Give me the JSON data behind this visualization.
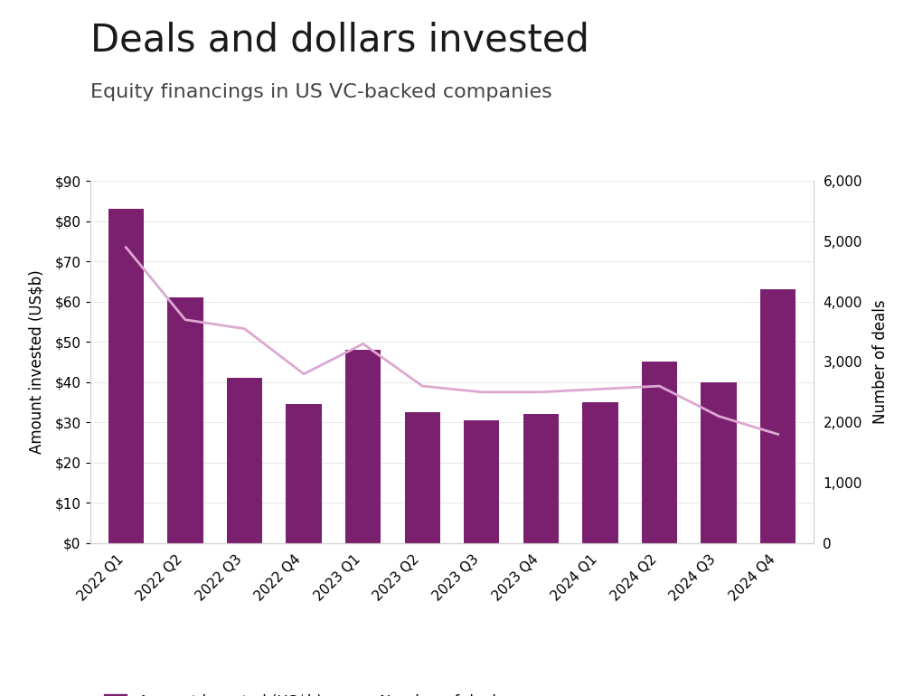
{
  "title": "Deals and dollars invested",
  "subtitle": "Equity financings in US VC-backed companies",
  "categories": [
    "2022 Q1",
    "2022 Q2",
    "2022 Q3",
    "2022 Q4",
    "2023 Q1",
    "2023 Q2",
    "2023 Q3",
    "2023 Q4",
    "2024 Q1",
    "2024 Q2",
    "2024 Q3",
    "2024 Q4"
  ],
  "amount_invested": [
    83,
    61,
    41,
    34.5,
    48,
    32.5,
    30.5,
    32,
    35,
    45,
    40,
    63
  ],
  "num_deals": [
    4900,
    3700,
    3550,
    2800,
    3300,
    2600,
    2500,
    2500,
    2550,
    2600,
    2100,
    1800
  ],
  "bar_color": "#7b1f6f",
  "line_color": "#dda8d0",
  "left_ylim": [
    0,
    90
  ],
  "right_ylim": [
    0,
    6000
  ],
  "left_yticks": [
    0,
    10,
    20,
    30,
    40,
    50,
    60,
    70,
    80,
    90
  ],
  "right_yticks": [
    0,
    1000,
    2000,
    3000,
    4000,
    5000,
    6000
  ],
  "ylabel_left": "Amount invested (US$b)",
  "ylabel_right": "Number of deals",
  "legend_labels": [
    "Amount invested (US$b)",
    "Number of deals"
  ],
  "background_color": "#ffffff",
  "title_fontsize": 30,
  "subtitle_fontsize": 16,
  "axis_label_fontsize": 12,
  "tick_fontsize": 11,
  "legend_fontsize": 12
}
